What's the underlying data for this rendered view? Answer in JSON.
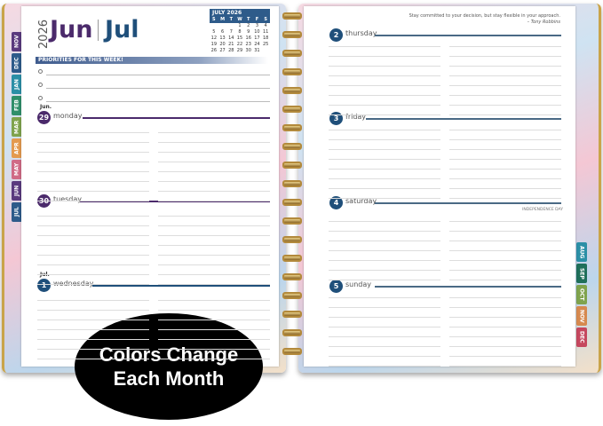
{
  "left_tabs": [
    {
      "label": "NOV",
      "color": "#5a3a7e"
    },
    {
      "label": "DEC",
      "color": "#2e5b8a"
    },
    {
      "label": "JAN",
      "color": "#2b8fa6"
    },
    {
      "label": "FEB",
      "color": "#2f8f6a"
    },
    {
      "label": "MAR",
      "color": "#7fa34d"
    },
    {
      "label": "APR",
      "color": "#e49a4f"
    },
    {
      "label": "MAY",
      "color": "#d06a86"
    },
    {
      "label": "JUN",
      "color": "#5a3a7e"
    },
    {
      "label": "JUL",
      "color": "#2e5b8a"
    }
  ],
  "right_tabs": [
    {
      "label": "AUG",
      "color": "#2b8fa6"
    },
    {
      "label": "SEP",
      "color": "#1f6f5a"
    },
    {
      "label": "OCT",
      "color": "#7fa34d"
    },
    {
      "label": "NOV",
      "color": "#d6894f"
    },
    {
      "label": "DEC",
      "color": "#c5475e"
    }
  ],
  "header": {
    "year": "2026",
    "month1": "Jun",
    "month2": "Jul",
    "month1_color": "#4b2a6b",
    "month2_color": "#1f4f7a"
  },
  "mini_calendar": {
    "title": "JULY 2026",
    "dow": [
      "S",
      "M",
      "T",
      "W",
      "T",
      "F",
      "S"
    ],
    "days": [
      "",
      "",
      "",
      "1",
      "2",
      "3",
      "4",
      "5",
      "6",
      "7",
      "8",
      "9",
      "10",
      "11",
      "12",
      "13",
      "14",
      "15",
      "16",
      "17",
      "18",
      "19",
      "20",
      "21",
      "22",
      "23",
      "24",
      "25",
      "26",
      "27",
      "28",
      "29",
      "30",
      "31",
      ""
    ]
  },
  "priorities": {
    "title": "PRIORITIES FOR THIS WEEK!"
  },
  "quote": {
    "text": "Stay committed to your decision, but stay flexible in your approach.",
    "author": "– Tony Robbins"
  },
  "left_days": [
    {
      "month_label": "Jun.",
      "num": "29",
      "name": "monday",
      "color": "#4b2a6b"
    },
    {
      "month_label": "",
      "num": "30",
      "name": "tuesday",
      "color": "#4b2a6b"
    },
    {
      "month_label": "Jul.",
      "num": "1",
      "name": "wednesday",
      "color": "#1f4f7a"
    }
  ],
  "right_days": [
    {
      "num": "2",
      "name": "thursday",
      "holiday": ""
    },
    {
      "num": "3",
      "name": "friday",
      "holiday": ""
    },
    {
      "num": "4",
      "name": "saturday",
      "holiday": "INDEPENDENCE DAY"
    },
    {
      "num": "5",
      "name": "sunday",
      "holiday": ""
    }
  ],
  "right_color": "#1f4f7a",
  "badge": {
    "line1": "Colors Change",
    "line2": "Each Month"
  }
}
